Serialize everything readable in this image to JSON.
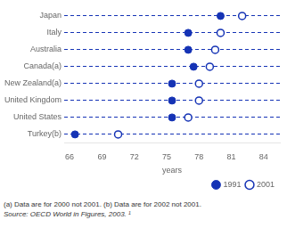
{
  "chart_data": {
    "type": "dot",
    "categories": [
      "Japan",
      "Italy",
      "Australia",
      "Canada(a)",
      "New Zealand(a)",
      "United Kingdom",
      "United States",
      "Turkey(b)"
    ],
    "series": [
      {
        "name": "1991",
        "color": "#1533b5",
        "marker": "circle",
        "values": [
          80.0,
          77.0,
          77.0,
          77.5,
          75.5,
          75.5,
          75.5,
          66.5
        ]
      },
      {
        "name": "2001",
        "color": "#1533b5",
        "marker": "open circle",
        "values": [
          82.0,
          80.0,
          79.5,
          79.0,
          78.0,
          78.0,
          77.0,
          70.5
        ]
      }
    ],
    "xlabel": "years",
    "xlim": [
      65.5,
      85.5
    ],
    "xticks": [
      66,
      69,
      72,
      75,
      78,
      81,
      84
    ],
    "grid": true,
    "legend": "lower right",
    "annotations": [
      "(a) Data are for 2000 not 2001.  (b) Data are for 2002 not 2001.",
      "Source: OECD World in Figures, 2003. ¹"
    ]
  }
}
